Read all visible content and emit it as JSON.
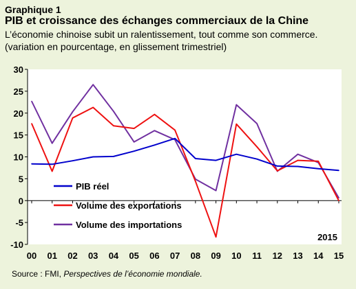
{
  "header": {
    "kicker": "Graphique 1",
    "title": "PIB et croissance des échanges commerciaux de la Chine",
    "subtitle": "L’économie chinoise subit un ralentissement, tout comme son commerce.",
    "note": "(variation en pourcentage,  en glissement trimestriel)"
  },
  "colors": {
    "background": "#edf3dc",
    "plot_background": "#ffffff",
    "pib": "#0000cc",
    "exportations": "#ee1111",
    "importations": "#7030a0"
  },
  "chart_data": {
    "type": "line",
    "x": [
      "00",
      "01",
      "02",
      "03",
      "04",
      "05",
      "06",
      "07",
      "08",
      "09",
      "10",
      "11",
      "12",
      "13",
      "14",
      "15"
    ],
    "ylim": [
      -10,
      30
    ],
    "yticks": [
      "30",
      "25",
      "20",
      "15",
      "10",
      "5",
      "0",
      "-5",
      "-10"
    ],
    "grid": false,
    "annotation": "2015",
    "legend_placement": "lower-left",
    "series": [
      {
        "name": "PIB réel",
        "key": "pib",
        "values": [
          8.4,
          8.3,
          9.1,
          10.0,
          10.1,
          11.3,
          12.7,
          14.2,
          9.6,
          9.2,
          10.6,
          9.5,
          7.9,
          7.8,
          7.3,
          6.9
        ]
      },
      {
        "name": "Volume des exportations",
        "key": "exportations",
        "values": [
          17.6,
          6.7,
          18.9,
          21.3,
          17.1,
          16.5,
          19.7,
          16.1,
          4.4,
          -8.3,
          17.5,
          12.3,
          6.8,
          9.2,
          9.0,
          0.0
        ]
      },
      {
        "name": "Volume des importations",
        "key": "importations",
        "values": [
          22.7,
          13.1,
          20.3,
          26.5,
          20.4,
          13.4,
          16.0,
          13.9,
          4.9,
          2.3,
          21.9,
          17.6,
          6.7,
          10.6,
          8.7,
          0.6
        ]
      }
    ]
  },
  "footer": {
    "source_label": "Source :  FMI, ",
    "source_publication": "Perspectives de l’économie mondiale."
  }
}
